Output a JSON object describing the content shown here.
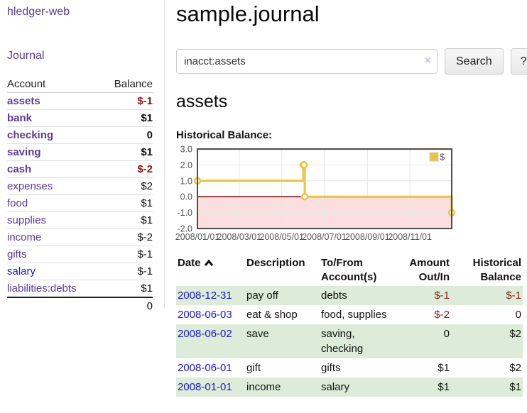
{
  "app": {
    "brand": "hledger-web"
  },
  "sidebar": {
    "nav_journal": "Journal",
    "accounts": {
      "header_account": "Account",
      "header_balance": "Balance",
      "rows": [
        {
          "name": "assets",
          "balance": "$-1",
          "indent": 1,
          "selected": true
        },
        {
          "name": "bank",
          "balance": "$1",
          "indent": 2,
          "selected": true
        },
        {
          "name": "checking",
          "balance": "0",
          "indent": 3,
          "selected": true
        },
        {
          "name": "saving",
          "balance": "$1",
          "indent": 3,
          "selected": true
        },
        {
          "name": "cash",
          "balance": "$-2",
          "indent": 2,
          "selected": true
        },
        {
          "name": "expenses",
          "balance": "$2",
          "indent": 1,
          "selected": false
        },
        {
          "name": "food",
          "balance": "$1",
          "indent": 2,
          "selected": false
        },
        {
          "name": "supplies",
          "balance": "$1",
          "indent": 2,
          "selected": false
        },
        {
          "name": "income",
          "balance": "$-2",
          "indent": 1,
          "selected": false
        },
        {
          "name": "gifts",
          "balance": "$-1",
          "indent": 2,
          "selected": false
        },
        {
          "name": "salary",
          "balance": "$-1",
          "indent": 2,
          "selected": false,
          "link_color": "blue"
        },
        {
          "name": "liabilities:debts",
          "balance": "$1",
          "indent": 1,
          "selected": false
        }
      ],
      "total": "0"
    }
  },
  "main": {
    "title": "sample.journal",
    "search": {
      "value": "inacct:assets",
      "clear_icon": "×",
      "search_button": "Search",
      "help_button": "?"
    },
    "account_heading": "assets",
    "chart_label": "Historical Balance:"
  },
  "chart_data": {
    "type": "line",
    "title": "Historical Balance",
    "steps": true,
    "series": [
      {
        "name": "$",
        "color": "#edc240",
        "points": [
          [
            "2008/01/01",
            1
          ],
          [
            "2008/06/01",
            2
          ],
          [
            "2008/06/02",
            2
          ],
          [
            "2008/06/03",
            0
          ],
          [
            "2008/12/31",
            -1
          ]
        ]
      }
    ],
    "xlim": [
      "2008/01/01",
      "2008/12/31"
    ],
    "ylim": [
      -2,
      3
    ],
    "x_ticks": [
      "2008/01/01",
      "2008/03/01",
      "2008/05/01",
      "2008/07/01",
      "2008/09/01",
      "2008/11/01"
    ],
    "y_ticks": [
      3,
      2,
      1,
      0,
      -1,
      -2
    ],
    "grid": true,
    "legend_position": "top-right",
    "tick_color": "#545454",
    "grid_color": "#e6e6e6",
    "border_color": "#4c4c4c",
    "negative_region_fill": "#fbdede",
    "zero_line_color": "#8b0000"
  },
  "transactions": {
    "headers": {
      "date": "Date",
      "description": "Description",
      "accounts": "To/From Account(s)",
      "amount": "Amount Out/In",
      "balance": "Historical Balance"
    },
    "rows": [
      {
        "date": "2008-12-31",
        "description": "pay off",
        "accounts": "debts",
        "amount": "$-1",
        "balance": "$-1"
      },
      {
        "date": "2008-06-03",
        "description": "eat & shop",
        "accounts": "food, supplies",
        "amount": "$-2",
        "balance": "0"
      },
      {
        "date": "2008-06-02",
        "description": "save",
        "accounts": "saving, checking",
        "amount": "0",
        "balance": "$2"
      },
      {
        "date": "2008-06-01",
        "description": "gift",
        "accounts": "gifts",
        "amount": "$1",
        "balance": "$2"
      },
      {
        "date": "2008-01-01",
        "description": "income",
        "accounts": "salary",
        "amount": "$1",
        "balance": "$1"
      }
    ]
  },
  "colors": {
    "accent_purple": "#5b3a9e",
    "link_blue": "#1a16cf",
    "negative_strong": "#8b1414",
    "negative_soft": "#b26168",
    "row_stripe_green": "#dcecd8",
    "chart_series_yellow": "#edc240",
    "chart_negative_fill": "#fbdede",
    "chart_zero_line": "#8b0000"
  }
}
